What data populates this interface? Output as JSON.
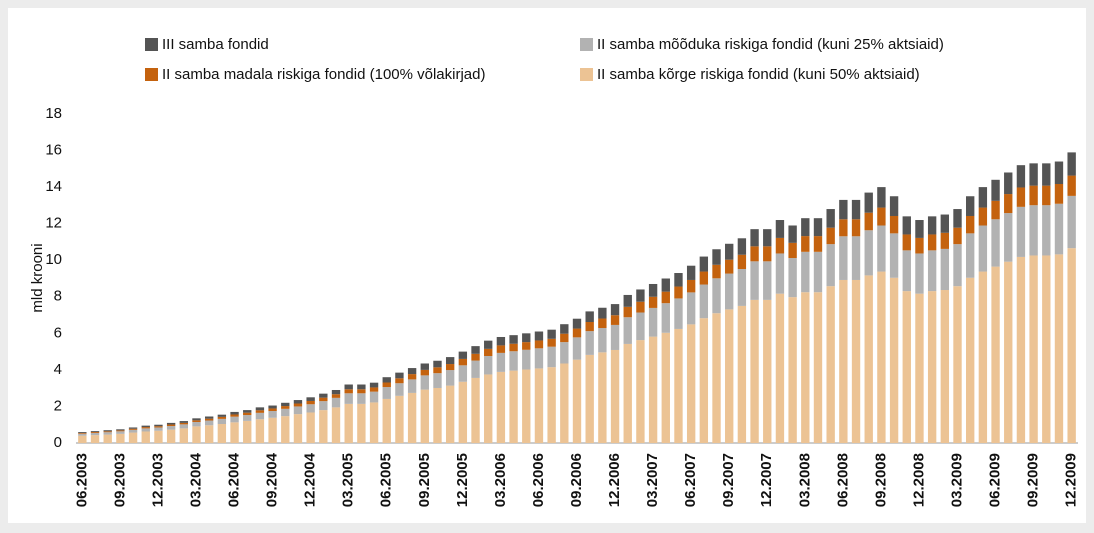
{
  "chart_data": {
    "type": "stacked_bar",
    "y_label": "mld krooni",
    "ylim": [
      0,
      18
    ],
    "yticks": [
      0,
      2,
      4,
      6,
      8,
      10,
      12,
      14,
      16,
      18
    ],
    "categories": [
      "06.2003",
      null,
      null,
      "09.2003",
      null,
      null,
      "12.2003",
      null,
      null,
      "03.2004",
      null,
      null,
      "06.2004",
      null,
      null,
      "09.2004",
      null,
      null,
      "12.2004",
      null,
      null,
      "03.2005",
      null,
      null,
      "06.2005",
      null,
      null,
      "09.2005",
      null,
      null,
      "12.2005",
      null,
      null,
      "03.2006",
      null,
      null,
      "06.2006",
      null,
      null,
      "09.2006",
      null,
      null,
      "12.2006",
      null,
      null,
      "03.2007",
      null,
      null,
      "06.2007",
      null,
      null,
      "09.2007",
      null,
      null,
      "12.2007",
      null,
      null,
      "03.2008",
      null,
      null,
      "06.2008",
      null,
      null,
      "09.2008",
      null,
      null,
      "12.2008",
      null,
      null,
      "03.2009",
      null,
      null,
      "06.2009",
      null,
      null,
      "09.2009",
      null,
      null,
      "12.2009"
    ],
    "series": [
      {
        "name": "II samba kõrge riskiga fondid (kuni 50% aktsiaid)",
        "color": "#ecc394",
        "values": [
          0.4,
          0.43,
          0.46,
          0.5,
          0.57,
          0.63,
          0.67,
          0.73,
          0.8,
          0.91,
          0.97,
          1.04,
          1.13,
          1.21,
          1.3,
          1.38,
          1.47,
          1.58,
          1.67,
          1.8,
          1.95,
          2.14,
          2.14,
          2.22,
          2.41,
          2.58,
          2.74,
          2.92,
          3.01,
          3.14,
          3.35,
          3.56,
          3.75,
          3.89,
          3.96,
          4.02,
          4.08,
          4.15,
          4.35,
          4.56,
          4.82,
          4.96,
          5.09,
          5.42,
          5.63,
          5.82,
          6.03,
          6.24,
          6.49,
          6.83,
          7.1,
          7.31,
          7.5,
          7.83,
          7.83,
          8.17,
          7.98,
          8.25,
          8.25,
          8.58,
          8.92,
          8.92,
          9.17,
          9.38,
          9.04,
          8.31,
          8.17,
          8.31,
          8.37,
          8.58,
          9.04,
          9.38,
          9.65,
          9.92,
          10.18,
          10.26,
          10.26,
          10.32,
          10.66
        ]
      },
      {
        "name": "II samba mõõduka riskiga fondid (kuni 25% aktsiaid)",
        "color": "#b2b2b2",
        "values": [
          0.11,
          0.12,
          0.13,
          0.14,
          0.15,
          0.17,
          0.18,
          0.2,
          0.22,
          0.24,
          0.26,
          0.28,
          0.31,
          0.32,
          0.35,
          0.37,
          0.4,
          0.42,
          0.45,
          0.49,
          0.52,
          0.58,
          0.58,
          0.59,
          0.65,
          0.69,
          0.74,
          0.78,
          0.81,
          0.85,
          0.9,
          0.95,
          1.01,
          1.04,
          1.06,
          1.08,
          1.1,
          1.12,
          1.17,
          1.22,
          1.3,
          1.33,
          1.37,
          1.46,
          1.51,
          1.57,
          1.62,
          1.67,
          1.75,
          1.84,
          1.91,
          1.96,
          2.02,
          2.11,
          2.11,
          2.2,
          2.14,
          2.21,
          2.21,
          2.3,
          2.39,
          2.39,
          2.47,
          2.52,
          2.43,
          2.23,
          2.2,
          2.23,
          2.25,
          2.3,
          2.43,
          2.52,
          2.59,
          2.66,
          2.74,
          2.75,
          2.75,
          2.77,
          2.86
        ]
      },
      {
        "name": "II samba madala riskiga fondid (100% võlakirjad)",
        "color": "#c4620e",
        "values": [
          0.04,
          0.05,
          0.05,
          0.05,
          0.06,
          0.07,
          0.07,
          0.08,
          0.08,
          0.09,
          0.1,
          0.11,
          0.12,
          0.13,
          0.14,
          0.14,
          0.15,
          0.16,
          0.18,
          0.19,
          0.2,
          0.22,
          0.22,
          0.23,
          0.25,
          0.27,
          0.29,
          0.3,
          0.32,
          0.33,
          0.35,
          0.37,
          0.39,
          0.41,
          0.41,
          0.42,
          0.43,
          0.43,
          0.46,
          0.48,
          0.5,
          0.52,
          0.53,
          0.57,
          0.59,
          0.61,
          0.63,
          0.65,
          0.68,
          0.71,
          0.74,
          0.76,
          0.78,
          0.82,
          0.82,
          0.85,
          0.83,
          0.86,
          0.86,
          0.9,
          0.93,
          0.93,
          0.96,
          0.98,
          0.95,
          0.87,
          0.85,
          0.87,
          0.88,
          0.9,
          0.95,
          0.98,
          1.01,
          1.04,
          1.06,
          1.07,
          1.07,
          1.08,
          1.11
        ]
      },
      {
        "name": "III samba fondid",
        "color": "#545454",
        "values": [
          0.05,
          0.05,
          0.06,
          0.06,
          0.07,
          0.08,
          0.08,
          0.09,
          0.1,
          0.11,
          0.12,
          0.12,
          0.14,
          0.14,
          0.16,
          0.16,
          0.18,
          0.19,
          0.2,
          0.22,
          0.23,
          0.26,
          0.26,
          0.26,
          0.29,
          0.31,
          0.33,
          0.35,
          0.36,
          0.38,
          0.4,
          0.42,
          0.45,
          0.46,
          0.47,
          0.48,
          0.49,
          0.5,
          0.52,
          0.54,
          0.58,
          0.59,
          0.61,
          0.65,
          0.67,
          0.7,
          0.72,
          0.74,
          0.78,
          0.82,
          0.85,
          0.87,
          0.9,
          0.94,
          0.94,
          0.98,
          0.95,
          0.98,
          0.98,
          1.02,
          1.06,
          1.06,
          1.1,
          1.12,
          1.08,
          0.99,
          0.98,
          0.99,
          1.0,
          1.02,
          1.08,
          1.12,
          1.15,
          1.18,
          1.22,
          1.22,
          1.22,
          1.23,
          1.27
        ]
      }
    ]
  }
}
